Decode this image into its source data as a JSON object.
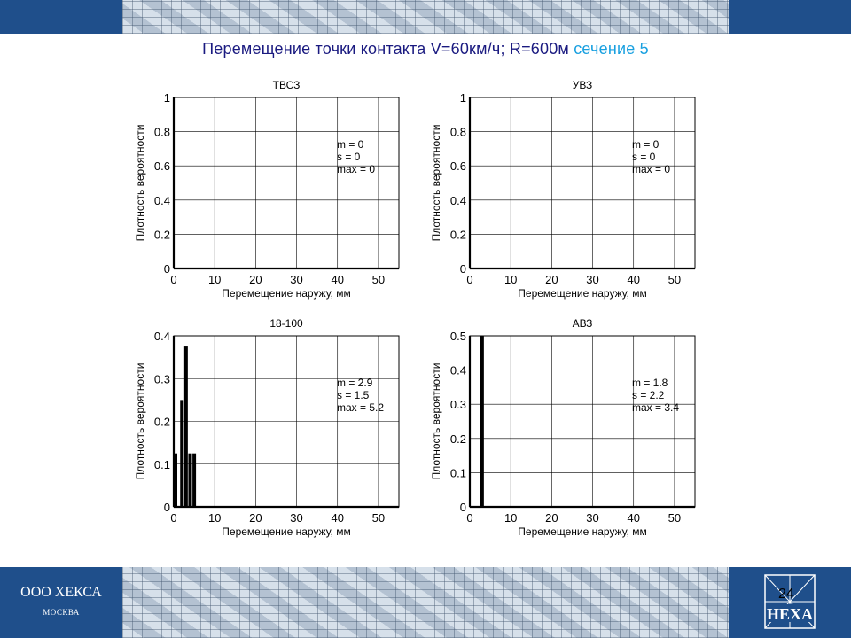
{
  "slide": {
    "title": "Перемещение точки контакта  V=60км/ч; R=600м",
    "section": "сечение 5",
    "company": "ООО ХЕКСА",
    "city": "МОСКВА",
    "logo_text": "HEXA",
    "page_number": "24"
  },
  "colors": {
    "band": "#1f4f8b",
    "title": "#1a1a80",
    "section": "#19a0e0",
    "bars": "#000000"
  },
  "chart_data": [
    {
      "type": "bar",
      "title": "ТВСЗ",
      "xlabel": "Перемещение наружу, мм",
      "ylabel": "Плотность вероятности",
      "xlim": [
        0,
        55
      ],
      "ylim": [
        0,
        1
      ],
      "xticks": [
        0,
        10,
        20,
        30,
        40,
        50
      ],
      "yticks": [
        0,
        0.2,
        0.4,
        0.6,
        0.8,
        1
      ],
      "ytick_labels": [
        "0",
        "0.2",
        "0.4",
        "0.6",
        "0.8",
        "1"
      ],
      "grid": true,
      "bars": [],
      "stats": [
        "m = 0",
        "s  = 0",
        "max  = 0"
      ]
    },
    {
      "type": "bar",
      "title": "УВЗ",
      "xlabel": "Перемещение наружу, мм",
      "ylabel": "Плотность вероятности",
      "xlim": [
        0,
        55
      ],
      "ylim": [
        0,
        1
      ],
      "xticks": [
        0,
        10,
        20,
        30,
        40,
        50
      ],
      "yticks": [
        0,
        0.2,
        0.4,
        0.6,
        0.8,
        1
      ],
      "ytick_labels": [
        "0",
        "0.2",
        "0.4",
        "0.6",
        "0.8",
        "1"
      ],
      "grid": true,
      "bars": [],
      "stats": [
        "m = 0",
        "s  = 0",
        "max  = 0"
      ]
    },
    {
      "type": "bar",
      "title": "18-100",
      "xlabel": "Перемещение наружу, мм",
      "ylabel": "Плотность вероятности",
      "xlim": [
        0,
        55
      ],
      "ylim": [
        0,
        0.4
      ],
      "xticks": [
        0,
        10,
        20,
        30,
        40,
        50
      ],
      "yticks": [
        0,
        0.1,
        0.2,
        0.3,
        0.4
      ],
      "ytick_labels": [
        "0",
        "0.1",
        "0.2",
        "0.3",
        "0.4"
      ],
      "grid": true,
      "bars": [
        {
          "x": 0.3,
          "value": 0.125
        },
        {
          "x": 2.0,
          "value": 0.25
        },
        {
          "x": 3.0,
          "value": 0.375
        },
        {
          "x": 4.0,
          "value": 0.125
        },
        {
          "x": 5.0,
          "value": 0.125
        }
      ],
      "stats": [
        "m = 2.9",
        "s  = 1.5",
        "max  = 5.2"
      ]
    },
    {
      "type": "bar",
      "title": "АВЗ",
      "xlabel": "Перемещение наружу, мм",
      "ylabel": "Плотность вероятности",
      "xlim": [
        0,
        55
      ],
      "ylim": [
        0,
        0.5
      ],
      "xticks": [
        0,
        10,
        20,
        30,
        40,
        50
      ],
      "yticks": [
        0,
        0.1,
        0.2,
        0.3,
        0.4,
        0.5
      ],
      "ytick_labels": [
        "0",
        "0.1",
        "0.2",
        "0.3",
        "0.4",
        "0.5"
      ],
      "grid": true,
      "bars": [
        {
          "x": 3.0,
          "value": 0.5
        }
      ],
      "stats": [
        "m = 1.8",
        "s  = 2.2",
        "max  = 3.4"
      ]
    }
  ]
}
